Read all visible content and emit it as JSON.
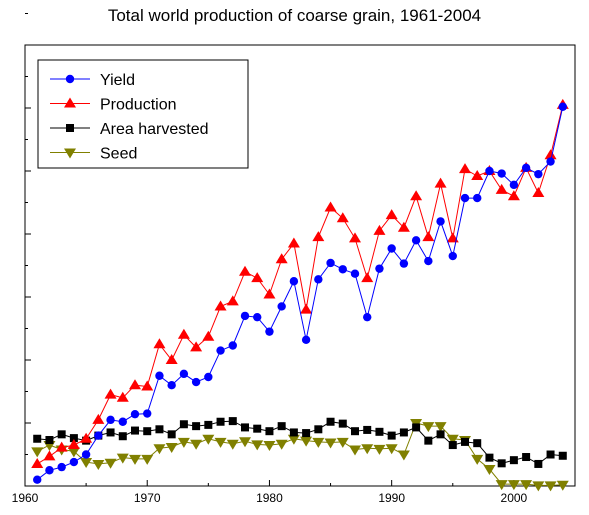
{
  "chart_data": {
    "type": "line",
    "title": "Total world production of coarse grain, 1961-2004",
    "xlabel": "",
    "ylabel": "",
    "xlim": [
      1960,
      2005
    ],
    "ylim": [
      0,
      7
    ],
    "x_ticks": [
      1960,
      1970,
      1980,
      1990,
      2000
    ],
    "y_tick_labels_shown": false,
    "grid": false,
    "legend_position": "top-left",
    "x": [
      1961,
      1962,
      1963,
      1964,
      1965,
      1966,
      1967,
      1968,
      1969,
      1970,
      1971,
      1972,
      1973,
      1974,
      1975,
      1976,
      1977,
      1978,
      1979,
      1980,
      1981,
      1982,
      1983,
      1984,
      1985,
      1986,
      1987,
      1988,
      1989,
      1990,
      1991,
      1992,
      1993,
      1994,
      1995,
      1996,
      1997,
      1998,
      1999,
      2000,
      2001,
      2002,
      2003,
      2004
    ],
    "series": [
      {
        "name": "Yield",
        "color": "#0000ff",
        "marker": "circle",
        "values": [
          0.1,
          0.25,
          0.3,
          0.38,
          0.5,
          0.8,
          1.05,
          1.02,
          1.14,
          1.15,
          1.75,
          1.6,
          1.78,
          1.65,
          1.73,
          2.15,
          2.23,
          2.7,
          2.68,
          2.45,
          2.85,
          3.25,
          2.32,
          3.28,
          3.54,
          3.44,
          3.37,
          2.68,
          3.45,
          3.77,
          3.53,
          3.9,
          3.57,
          4.2,
          3.65,
          4.57,
          4.57,
          5.0,
          4.96,
          4.78,
          5.05,
          4.95,
          5.15,
          6.02
        ]
      },
      {
        "name": "Production",
        "color": "#ff0000",
        "marker": "triangle-up",
        "values": [
          0.35,
          0.47,
          0.61,
          0.65,
          0.75,
          1.05,
          1.45,
          1.4,
          1.6,
          1.58,
          2.25,
          2.0,
          2.4,
          2.2,
          2.37,
          2.85,
          2.93,
          3.4,
          3.3,
          3.04,
          3.6,
          3.85,
          2.8,
          3.95,
          4.42,
          4.25,
          3.93,
          3.3,
          4.05,
          4.3,
          4.1,
          4.6,
          3.95,
          4.8,
          3.93,
          5.03,
          4.92,
          5.0,
          4.7,
          4.6,
          5.05,
          4.65,
          5.25,
          6.05
        ]
      },
      {
        "name": "Area harvested",
        "color": "#000000",
        "marker": "square",
        "values": [
          0.75,
          0.73,
          0.82,
          0.76,
          0.72,
          0.8,
          0.85,
          0.79,
          0.88,
          0.87,
          0.9,
          0.82,
          0.98,
          0.95,
          0.97,
          1.02,
          1.03,
          0.93,
          0.91,
          0.87,
          0.95,
          0.85,
          0.84,
          0.9,
          1.02,
          0.99,
          0.87,
          0.89,
          0.86,
          0.8,
          0.85,
          0.93,
          0.72,
          0.82,
          0.65,
          0.7,
          0.68,
          0.45,
          0.36,
          0.41,
          0.46,
          0.35,
          0.5,
          0.48
        ]
      },
      {
        "name": "Seed",
        "color": "#808000",
        "marker": "triangle-down",
        "values": [
          0.55,
          0.65,
          0.58,
          0.55,
          0.38,
          0.35,
          0.37,
          0.45,
          0.43,
          0.43,
          0.6,
          0.62,
          0.7,
          0.67,
          0.75,
          0.7,
          0.67,
          0.71,
          0.66,
          0.65,
          0.67,
          0.75,
          0.72,
          0.7,
          0.69,
          0.7,
          0.58,
          0.6,
          0.59,
          0.6,
          0.5,
          1.0,
          0.95,
          0.95,
          0.75,
          0.73,
          0.43,
          0.27,
          0.03,
          0.03,
          0.03,
          0.01,
          0.01,
          0.02
        ]
      }
    ]
  }
}
